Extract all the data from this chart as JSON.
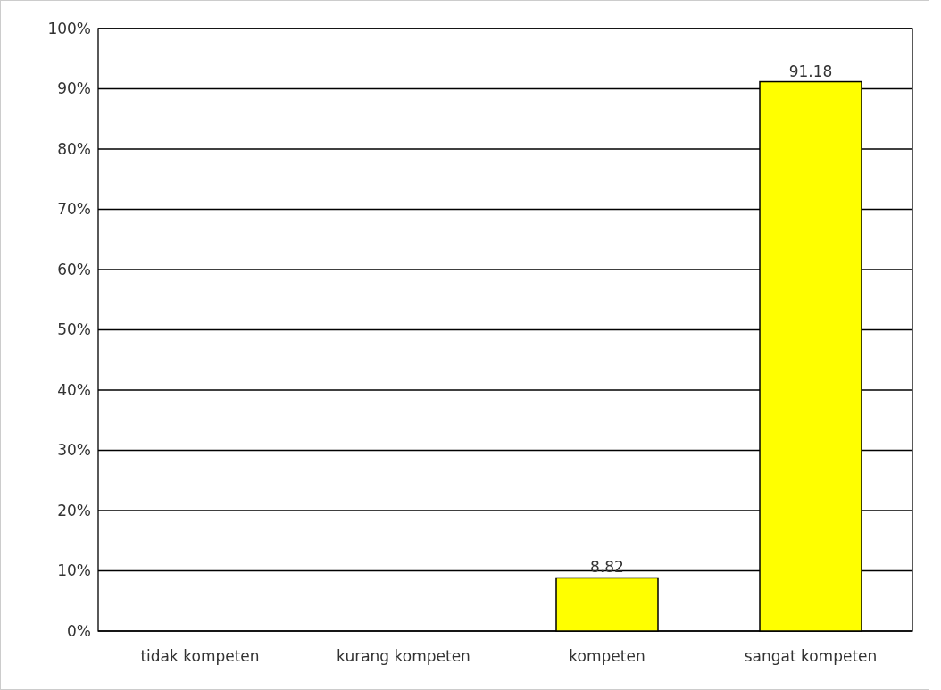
{
  "chart_data": {
    "type": "bar",
    "categories": [
      "tidak kompeten",
      "kurang kompeten",
      "kompeten",
      "sangat kompeten"
    ],
    "values": [
      0,
      0,
      8.82,
      91.18
    ],
    "color": "#ffff00",
    "value_labels": [
      null,
      null,
      "8.82",
      "91.18"
    ],
    "ylim": [
      0,
      100
    ],
    "yticks": [
      {
        "value": 0,
        "label": "0%"
      },
      {
        "value": 10,
        "label": "10%"
      },
      {
        "value": 20,
        "label": "20%"
      },
      {
        "value": 30,
        "label": "30%"
      },
      {
        "value": 40,
        "label": "40%"
      },
      {
        "value": 50,
        "label": "50%"
      },
      {
        "value": 60,
        "label": "60%"
      },
      {
        "value": 70,
        "label": "70%"
      },
      {
        "value": 80,
        "label": "80%"
      },
      {
        "value": 90,
        "label": "90%"
      },
      {
        "value": 100,
        "label": "100%"
      }
    ],
    "grid": "y"
  }
}
